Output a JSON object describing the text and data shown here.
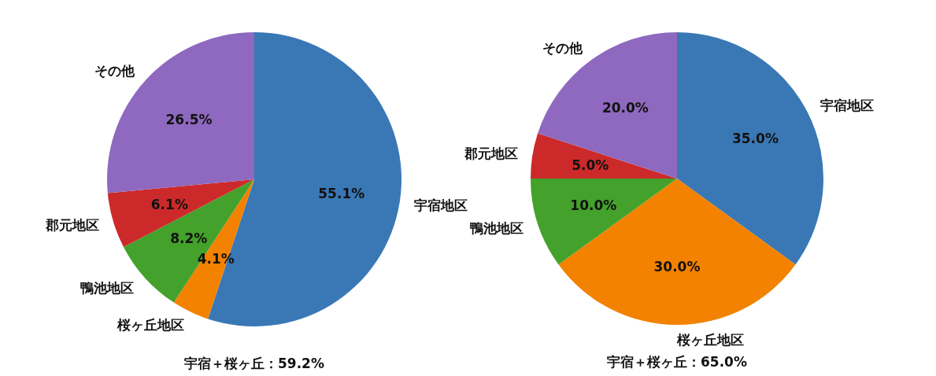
{
  "chart_data": [
    {
      "type": "pie",
      "categories": [
        "宇宿地区",
        "桜ヶ丘地区",
        "鴨池地区",
        "郡元地区",
        "その他"
      ],
      "values": [
        55.1,
        4.1,
        8.2,
        6.1,
        26.5
      ],
      "colors": [
        "#3a78b5",
        "#f28200",
        "#44a12b",
        "#cc2a2a",
        "#8e69bf"
      ],
      "value_labels": [
        "55.1%",
        "4.1%",
        "8.2%",
        "6.1%",
        "26.5%"
      ],
      "annotations": [
        "宇宿＋桜ヶ丘：59.2%"
      ]
    },
    {
      "type": "pie",
      "categories": [
        "宇宿地区",
        "桜ヶ丘地区",
        "鴨池地区",
        "郡元地区",
        "その他"
      ],
      "values": [
        35.0,
        30.0,
        10.0,
        5.0,
        20.0
      ],
      "colors": [
        "#3a78b5",
        "#f28200",
        "#44a12b",
        "#cc2a2a",
        "#8e69bf"
      ],
      "value_labels": [
        "35.0%",
        "30.0%",
        "10.0%",
        "5.0%",
        "20.0%"
      ],
      "annotations": [
        "宇宿＋桜ヶ丘：65.0%"
      ]
    }
  ]
}
